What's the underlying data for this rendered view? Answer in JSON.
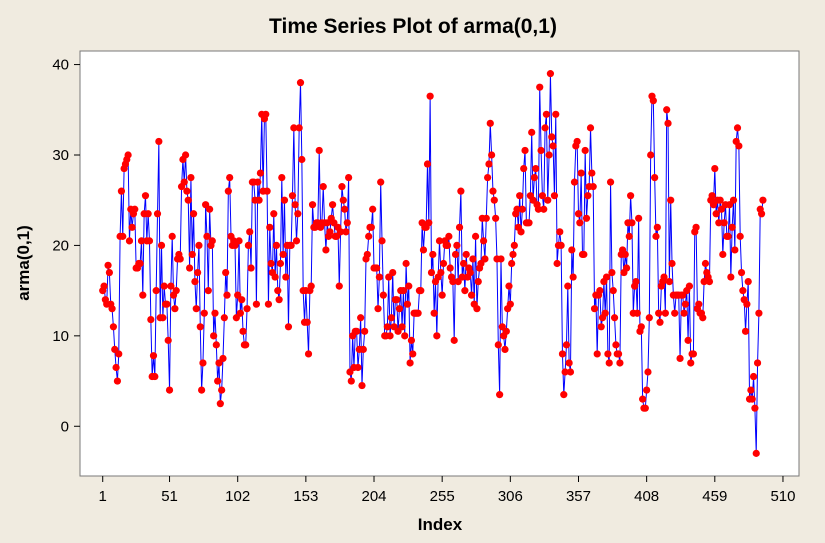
{
  "chart_data": {
    "type": "line",
    "title": "Time Series Plot of arma(0,1)",
    "xlabel": "Index",
    "ylabel": "arma(0,1)",
    "xlim": [
      -16,
      522
    ],
    "ylim": [
      -5.5,
      41.5
    ],
    "x_ticks": [
      1,
      51,
      102,
      153,
      204,
      255,
      306,
      357,
      408,
      459,
      510
    ],
    "y_ticks": [
      0,
      10,
      20,
      30,
      40
    ],
    "grid": false,
    "legend": "none",
    "marker": "circle",
    "line_color": "#0000ff",
    "marker_color": "#ff0000",
    "series": [
      {
        "values": [
          15,
          15.5,
          14,
          13.5,
          17.8,
          17,
          13.5,
          13,
          11,
          8.5,
          6.5,
          5,
          8,
          21,
          26,
          21,
          28.5,
          29,
          29.5,
          30,
          20.5,
          24,
          22,
          23.5,
          24,
          17.5,
          17.5,
          18,
          18,
          20.5,
          14.5,
          23.5,
          25.5,
          20.5,
          23.5,
          20.5,
          11.8,
          5.5,
          7.8,
          5.5,
          15,
          23.5,
          31.5,
          12,
          20,
          12,
          15.5,
          13.5,
          13.5,
          9.5,
          4,
          15.5,
          21,
          14.5,
          13,
          15,
          18.5,
          19,
          18.5,
          26.5,
          29.5,
          27,
          30,
          26,
          25,
          17.5,
          27.5,
          19,
          23.5,
          16,
          13,
          17,
          20,
          11,
          4,
          7,
          12.5,
          24.5,
          21,
          15,
          24,
          20,
          20.5,
          10,
          12.5,
          9,
          5,
          7,
          2.5,
          4,
          7.5,
          12,
          17,
          14.5,
          26,
          27.5,
          21,
          20,
          20.5,
          20,
          12,
          14.5,
          20.5,
          12.5,
          14,
          10.5,
          9,
          9,
          13,
          20,
          21.5,
          17.5,
          27,
          27,
          25,
          13.5,
          27,
          25,
          28,
          34.5,
          26,
          34,
          34.5,
          26,
          13.5,
          22,
          18,
          17,
          23.5,
          16.5,
          20,
          15,
          14,
          18,
          27.5,
          19,
          25,
          16.5,
          20,
          11,
          20,
          20,
          25.5,
          33,
          24.5,
          20.5,
          23.5,
          33,
          38,
          29.5,
          15,
          11.5,
          15,
          11.5,
          8,
          15,
          15.5,
          24.5,
          22,
          22,
          22.5,
          22.5,
          30.5,
          22,
          22.5,
          26.5,
          22.5,
          19.5,
          22.5,
          21,
          21.5,
          23,
          24.5,
          22.5,
          21,
          21,
          22,
          15.5,
          21.5,
          26.5,
          25,
          24,
          21.5,
          22.5,
          27.5,
          6,
          5,
          10,
          6.5,
          10.5,
          10.5,
          6.5,
          8.5,
          12,
          4.5,
          8.5,
          10.5,
          18.5,
          19,
          21,
          22,
          22,
          24,
          17.5,
          17.5,
          17.5,
          13,
          16.5,
          27,
          20.5,
          14.5,
          10,
          10,
          11,
          16.5,
          10,
          12,
          17,
          11,
          14,
          14,
          10.5,
          13,
          15,
          11,
          15,
          10,
          18,
          13.5,
          15.5,
          7,
          9.5,
          8,
          12.5,
          12.5,
          12.5,
          12.5,
          15,
          15,
          22.5,
          19.5,
          22,
          22,
          29,
          22.5,
          36.5,
          17,
          19,
          12.5,
          16,
          10,
          16.5,
          20.5,
          17,
          14.5,
          18,
          20.5,
          20,
          20,
          21,
          17.5,
          16.5,
          16,
          9.5,
          19,
          20,
          16,
          22,
          26,
          16.5,
          18,
          15,
          19,
          16.5,
          17.5,
          17,
          14.5,
          18.5,
          13.5,
          21,
          13,
          16,
          17.5,
          18,
          23,
          20.5,
          18.5,
          23,
          27.5,
          29,
          33.5,
          30,
          26,
          25,
          23,
          18.5,
          9,
          3.5,
          18.5,
          11,
          10,
          8.5,
          10.5,
          13,
          15.5,
          13.5,
          18,
          19,
          20,
          23.5,
          24,
          22,
          25.5,
          21.5,
          24,
          28.5,
          30.5,
          22.5,
          22.5,
          22.5,
          25.5,
          32.5,
          25,
          27.5,
          28.5,
          24.5,
          24,
          37.5,
          30.5,
          25.5,
          24,
          33,
          34.5,
          25,
          30,
          39,
          32,
          31,
          25.5,
          34.5,
          18,
          20,
          21.5,
          20,
          8,
          3.5,
          6,
          9,
          15.5,
          7,
          6,
          19.5,
          16.5,
          27,
          31,
          31.5,
          23.5,
          22.5,
          28,
          19,
          19,
          30.5,
          23,
          25.5,
          26.5,
          33,
          28,
          26.5,
          13,
          14.5,
          8,
          14.5,
          15,
          11,
          12,
          16,
          12.5,
          16.5,
          8,
          7,
          27,
          17,
          15,
          12,
          9,
          8,
          8,
          7,
          19,
          19.5,
          17,
          19,
          17.5,
          22.5,
          21,
          25.5,
          22.5,
          12.5,
          15.5,
          16,
          12.5,
          23,
          10.5,
          11,
          3,
          2,
          2,
          4,
          6,
          12,
          30,
          36.5,
          36,
          27.5,
          21,
          22,
          12.5,
          11.5,
          15.5,
          16,
          16.5,
          12.5,
          35,
          33.5,
          16,
          25,
          18,
          14.5,
          12.5,
          14.5,
          14.5,
          14.5,
          7.5,
          14.5,
          14.5,
          12.5,
          13.5,
          15,
          9.5,
          15.5,
          7,
          8,
          8,
          21.5,
          22,
          13,
          13.5,
          12.5,
          12.5,
          12,
          16,
          18,
          17,
          16.5,
          16,
          25,
          25.5,
          24.5,
          28.5,
          23.5,
          25,
          22.5,
          25,
          24,
          19,
          22.5,
          24.5,
          21,
          21,
          24.5,
          16.5,
          22,
          25,
          19.5,
          31.5,
          33,
          31,
          21,
          17,
          15,
          14,
          10.5,
          13.5,
          16,
          3,
          4,
          3,
          5.5,
          2,
          -3,
          7,
          12.5,
          24,
          23.5,
          25
        ]
      }
    ]
  }
}
